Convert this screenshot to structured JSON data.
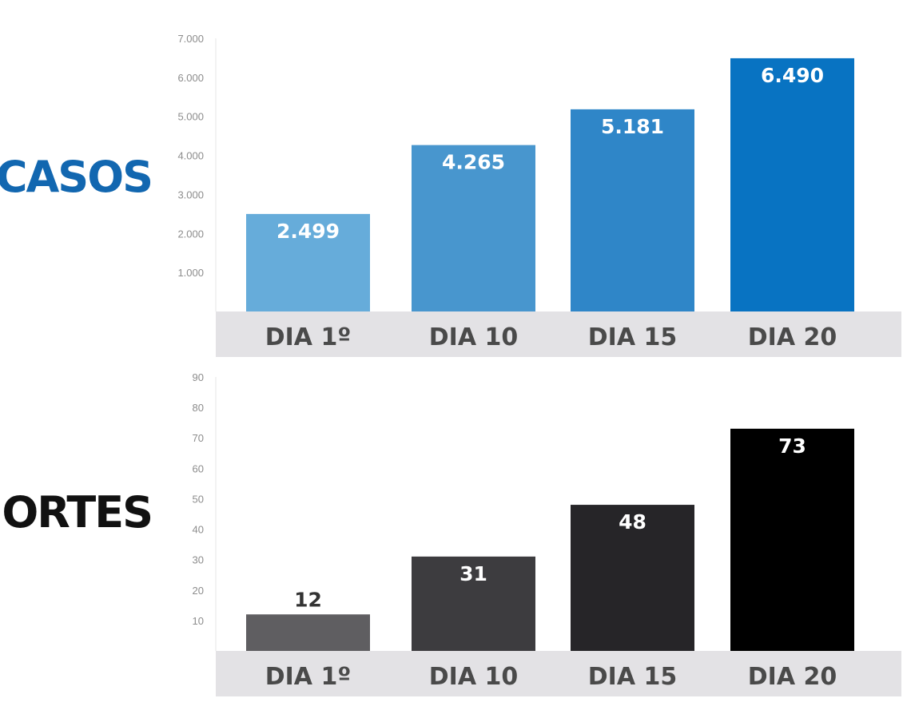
{
  "chart_data": [
    {
      "type": "bar",
      "title": "CASOS",
      "categories": [
        "DIA 1º",
        "DIA 10",
        "DIA 15",
        "DIA 20"
      ],
      "values": [
        2499,
        4265,
        5181,
        6490
      ],
      "value_labels": [
        "2.499",
        "4.265",
        "5.181",
        "6.490"
      ],
      "ylim": [
        0,
        7000
      ],
      "yticks": [
        1000,
        2000,
        3000,
        4000,
        5000,
        6000,
        7000
      ],
      "ytick_labels": [
        "1.000",
        "2.000",
        "3.000",
        "4.000",
        "5.000",
        "6.000",
        "7.000"
      ],
      "grid": false,
      "colors": [
        "#66acda",
        "#4896ce",
        "#2f86c8",
        "#0873c2"
      ],
      "title_color": "#1267b0"
    },
    {
      "type": "bar",
      "title": "MORTES",
      "categories": [
        "DIA 1º",
        "DIA 10",
        "DIA 15",
        "DIA 20"
      ],
      "values": [
        12,
        31,
        48,
        73
      ],
      "value_labels": [
        "12",
        "31",
        "48",
        "73"
      ],
      "ylim": [
        0,
        90
      ],
      "yticks": [
        10,
        20,
        30,
        40,
        50,
        60,
        70,
        80,
        90
      ],
      "ytick_labels": [
        "10",
        "20",
        "30",
        "40",
        "50",
        "60",
        "70",
        "80",
        "90"
      ],
      "grid": false,
      "colors": [
        "#5f5e61",
        "#3d3c3f",
        "#262528",
        "#000000"
      ],
      "title_color": "#111111"
    }
  ]
}
